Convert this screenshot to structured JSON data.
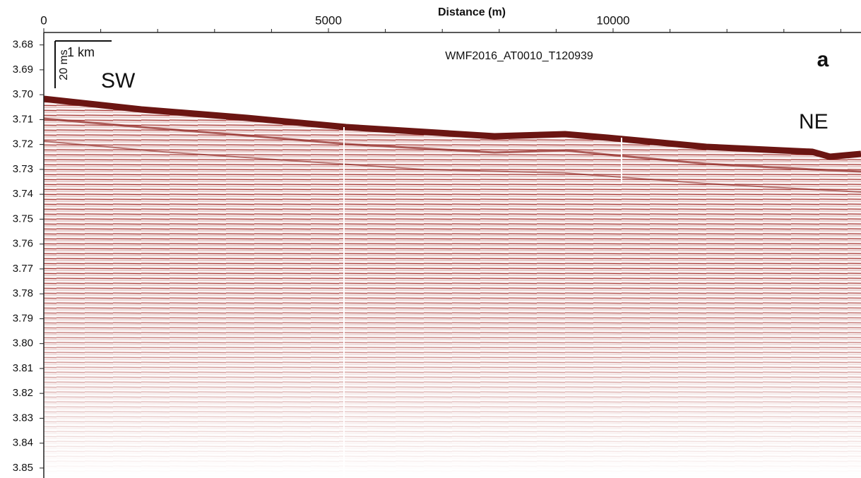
{
  "chart_data": {
    "type": "seismic-profile",
    "x_label": "Distance (m)",
    "xlim": [
      0,
      14330
    ],
    "xticks": [
      0,
      5000,
      10000
    ],
    "xminor_ticks": [
      1000,
      2000,
      3000,
      4000,
      6000,
      7000,
      8000,
      9000,
      11000,
      12000,
      13000,
      14000
    ],
    "ylim": [
      3.675,
      3.854
    ],
    "yticks": [
      3.68,
      3.69,
      {
        "value": 3.7,
        "label": "3.70"
      },
      3.71,
      3.72,
      3.73,
      3.74,
      3.75,
      3.76,
      3.77,
      3.78,
      3.79,
      {
        "value": 3.8,
        "label": "3.80"
      },
      3.81,
      3.82,
      3.83,
      3.84,
      3.85
    ],
    "y_reversed": true,
    "profile_name": "WMF2016_AT0010_T120939",
    "panel_label": "a",
    "left_direction": "SW",
    "right_direction": "NE",
    "scale_bar_horizontal": "1 km",
    "scale_bar_vertical": "20 ms"
  }
}
